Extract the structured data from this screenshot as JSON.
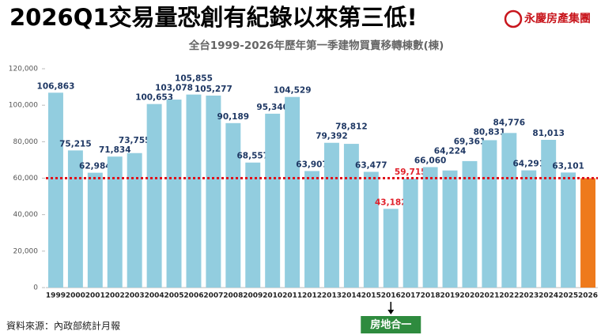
{
  "chart_data": {
    "type": "bar",
    "title": "2026Q1交易量恐創有紀錄以來第三低!",
    "subtitle": "全台1999-2026年歷年第一季建物買賣移轉棟數(棟)",
    "logo": "永慶房產集團",
    "source": "資料來源：內政部統計月報",
    "categories": [
      "1999",
      "2000",
      "2001",
      "2002",
      "2003",
      "2004",
      "2005",
      "2006",
      "2007",
      "2008",
      "2009",
      "2010",
      "2011",
      "2012",
      "2013",
      "2014",
      "2015",
      "2016",
      "2017",
      "2018",
      "2019",
      "2020",
      "2021",
      "2022",
      "2023",
      "2024",
      "2025",
      "2026"
    ],
    "values": [
      106863,
      75215,
      62984,
      71834,
      73755,
      100653,
      103078,
      105855,
      105277,
      90189,
      68557,
      95340,
      104529,
      63907,
      79392,
      78812,
      63477,
      43182,
      59715,
      66060,
      64224,
      69361,
      80831,
      84776,
      64291,
      81013,
      63101,
      60000
    ],
    "value_labels": [
      "106,863",
      "75,215",
      "62,984",
      "71,834",
      "73,755",
      "100,653",
      "103,078",
      "105,855",
      "105,277",
      "90,189",
      "68,557",
      "95,340",
      "104,529",
      "63,907",
      "79,392",
      "78,812",
      "63,477",
      "43,182",
      "59,715",
      "66,060",
      "64,224",
      "69,361",
      "80,831",
      "84,776",
      "64,291",
      "81,013",
      "63,101",
      null
    ],
    "colors": [
      "#92cddf",
      "#92cddf",
      "#92cddf",
      "#92cddf",
      "#92cddf",
      "#92cddf",
      "#92cddf",
      "#92cddf",
      "#92cddf",
      "#92cddf",
      "#92cddf",
      "#92cddf",
      "#92cddf",
      "#92cddf",
      "#92cddf",
      "#92cddf",
      "#92cddf",
      "#92cddf",
      "#92cddf",
      "#92cddf",
      "#92cddf",
      "#92cddf",
      "#92cddf",
      "#92cddf",
      "#92cddf",
      "#92cddf",
      "#92cddf",
      "#ee7a1c"
    ],
    "label_colors": [
      "#1f3864",
      "#1f3864",
      "#1f3864",
      "#1f3864",
      "#1f3864",
      "#1f3864",
      "#1f3864",
      "#1f3864",
      "#1f3864",
      "#1f3864",
      "#1f3864",
      "#1f3864",
      "#1f3864",
      "#1f3864",
      "#1f3864",
      "#1f3864",
      "#1f3864",
      "#e0202a",
      "#e0202a",
      "#1f3864",
      "#1f3864",
      "#1f3864",
      "#1f3864",
      "#1f3864",
      "#1f3864",
      "#1f3864",
      "#1f3864",
      "#1f3864"
    ],
    "ylim": [
      0,
      120000
    ],
    "yticks": [
      0,
      {
        "value": 20000,
        "label": "20,000"
      },
      {
        "value": 40000,
        "label": "40,000"
      },
      {
        "value": 60000,
        "label": "60,000"
      },
      {
        "value": 80000,
        "label": "80,000"
      },
      {
        "value": 100000,
        "label": "100,000"
      },
      {
        "value": 120000,
        "label": "120,000"
      }
    ],
    "reference_line": {
      "value": 60000,
      "color": "#e0101a"
    },
    "annotation": {
      "text": "房地合一",
      "at": "2016",
      "color": "#2e8b3e"
    }
  }
}
